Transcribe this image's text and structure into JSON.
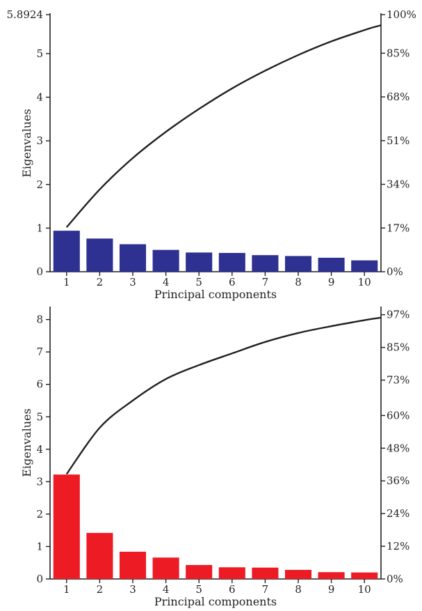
{
  "chart_data": [
    {
      "type": "bar",
      "categories": [
        "1",
        "2",
        "3",
        "4",
        "5",
        "6",
        "7",
        "8",
        "9",
        "10"
      ],
      "values": [
        0.94,
        0.76,
        0.63,
        0.5,
        0.44,
        0.43,
        0.38,
        0.36,
        0.32,
        0.26
      ],
      "bar_color": "#2e3191",
      "line": {
        "cumulative_percent": [
          17.3,
          32.0,
          44.2,
          54.4,
          63.3,
          71.3,
          78.2,
          84.3,
          89.6,
          94.0
        ]
      },
      "xlabel": "Principal components",
      "ylabel": "Eigenvalues",
      "ylim": [
        0,
        5.8924
      ],
      "yticks": [
        "0",
        "1",
        "2",
        "3",
        "4",
        "5",
        "5.8924"
      ],
      "y2lim": [
        0,
        100
      ],
      "y2ticks": [
        "0%",
        "17%",
        "34%",
        "51%",
        "68%",
        "85%",
        "100%"
      ]
    },
    {
      "type": "bar",
      "categories": [
        "1",
        "2",
        "3",
        "4",
        "5",
        "6",
        "7",
        "8",
        "9",
        "10"
      ],
      "values": [
        3.22,
        1.42,
        0.84,
        0.66,
        0.43,
        0.36,
        0.35,
        0.28,
        0.21,
        0.2
      ],
      "bar_color": "#ed1c24",
      "line": {
        "cumulative_percent": [
          38.5,
          55.5,
          65.5,
          73.4,
          78.5,
          82.8,
          87.0,
          90.3,
          92.8,
          95.0
        ]
      },
      "xlabel": "Principal components",
      "ylabel": "Eigenvalues",
      "ylim": [
        0,
        8.4
      ],
      "yticks": [
        "0",
        "1",
        "2",
        "3",
        "4",
        "5",
        "6",
        "7",
        "8"
      ],
      "y2lim": [
        0,
        100
      ],
      "y2ticks": [
        "0%",
        "12%",
        "24%",
        "36%",
        "48%",
        "60%",
        "73%",
        "85%",
        "97%"
      ]
    }
  ]
}
